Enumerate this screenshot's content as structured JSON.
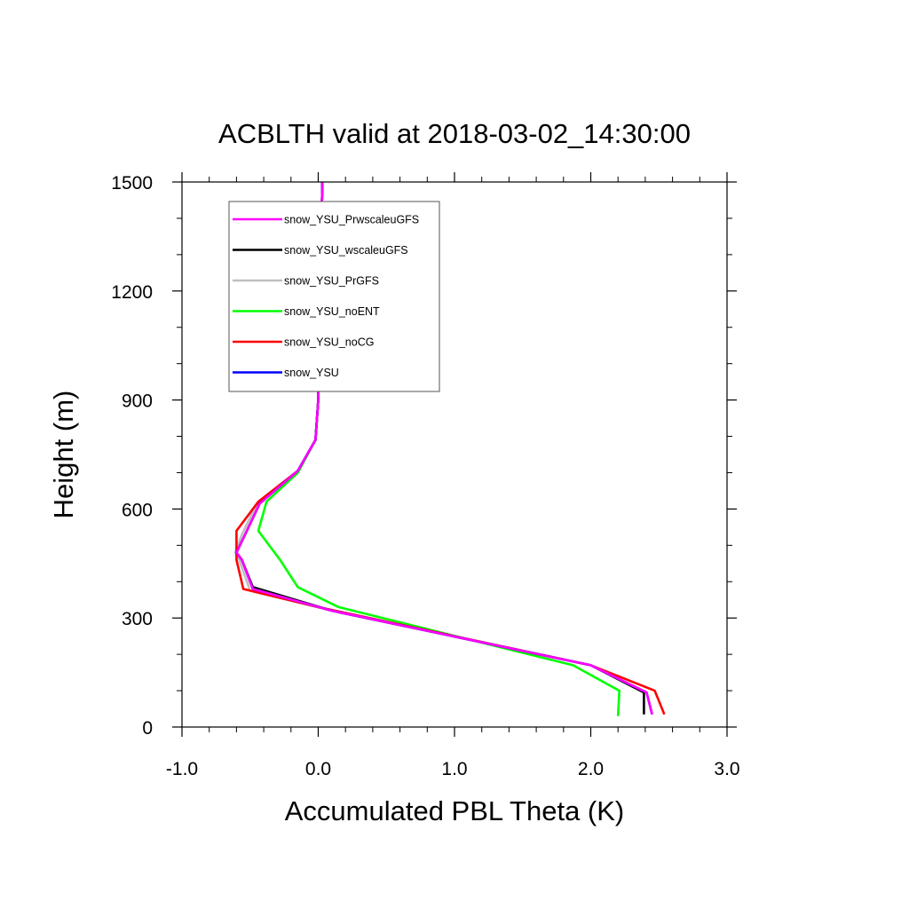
{
  "chart_data": {
    "type": "line",
    "title": "ACBLTH valid at 2018-03-02_14:30:00",
    "xlabel": "Accumulated PBL Theta (K)",
    "ylabel": "Height (m)",
    "xlim": [
      -1.0,
      3.0
    ],
    "ylim": [
      0,
      1500
    ],
    "xticks": [
      -1.0,
      0.0,
      1.0,
      2.0,
      3.0
    ],
    "xtick_labels": [
      "-1.0",
      "0.0",
      "1.0",
      "2.0",
      "3.0"
    ],
    "yticks": [
      0,
      300,
      600,
      900,
      1200,
      1500
    ],
    "ytick_labels": [
      "0",
      "300",
      "600",
      "900",
      "1200",
      "1500"
    ],
    "x_minor_step": 0.2,
    "y_minor_step": 100,
    "grid": false,
    "legend_position": "top-left",
    "series": [
      {
        "name": "snow_YSU_PrwscaleuGFS",
        "color": "#ff00ff",
        "x": [
          2.45,
          2.41,
          2.0,
          0.1,
          -0.48,
          -0.56,
          -0.6,
          -0.53,
          -0.43,
          -0.15,
          -0.02,
          0.0,
          0.03
        ],
        "y": [
          35,
          95,
          170,
          320,
          380,
          460,
          480,
          535,
          615,
          705,
          790,
          900,
          1500
        ]
      },
      {
        "name": "snow_YSU_wscaleuGFS",
        "color": "#000000",
        "x": [
          2.39,
          2.39,
          2.0,
          0.1,
          -0.48,
          -0.56,
          -0.6,
          -0.53,
          -0.43,
          -0.15,
          -0.02,
          0.0,
          0.03
        ],
        "y": [
          35,
          95,
          170,
          320,
          385,
          460,
          480,
          535,
          615,
          705,
          790,
          900,
          1500
        ]
      },
      {
        "name": "snow_YSU_PrGFS",
        "color": "#bfbfbf",
        "x": [
          2.45,
          2.41,
          2.0,
          0.1,
          -0.5,
          -0.58,
          -0.61,
          -0.56,
          -0.45,
          -0.15,
          -0.02,
          0.0,
          0.03
        ],
        "y": [
          35,
          95,
          170,
          320,
          375,
          460,
          480,
          530,
          615,
          705,
          790,
          900,
          1500
        ]
      },
      {
        "name": "snow_YSU_noENT",
        "color": "#00ff00",
        "x": [
          2.2,
          2.21,
          1.87,
          0.15,
          -0.15,
          -0.28,
          -0.44,
          -0.38,
          -0.15,
          -0.02,
          0.0,
          0.03
        ],
        "y": [
          30,
          100,
          170,
          330,
          385,
          460,
          540,
          620,
          700,
          790,
          900,
          1500
        ]
      },
      {
        "name": "snow_YSU_noCG",
        "color": "#ff0000",
        "x": [
          2.54,
          2.47,
          2.0,
          0.0,
          -0.55,
          -0.6,
          -0.6,
          -0.44,
          -0.15,
          -0.02,
          0.0,
          0.03
        ],
        "y": [
          35,
          100,
          170,
          330,
          380,
          460,
          540,
          620,
          705,
          790,
          900,
          1500
        ]
      },
      {
        "name": "snow_YSU",
        "color": "#0000ff",
        "x": [
          2.45,
          2.41,
          2.0,
          0.1,
          -0.48,
          -0.56,
          -0.6,
          -0.53,
          -0.43,
          -0.15,
          -0.02,
          0.0,
          0.03
        ],
        "y": [
          35,
          95,
          170,
          320,
          380,
          460,
          480,
          535,
          615,
          705,
          790,
          900,
          1500
        ]
      }
    ]
  }
}
